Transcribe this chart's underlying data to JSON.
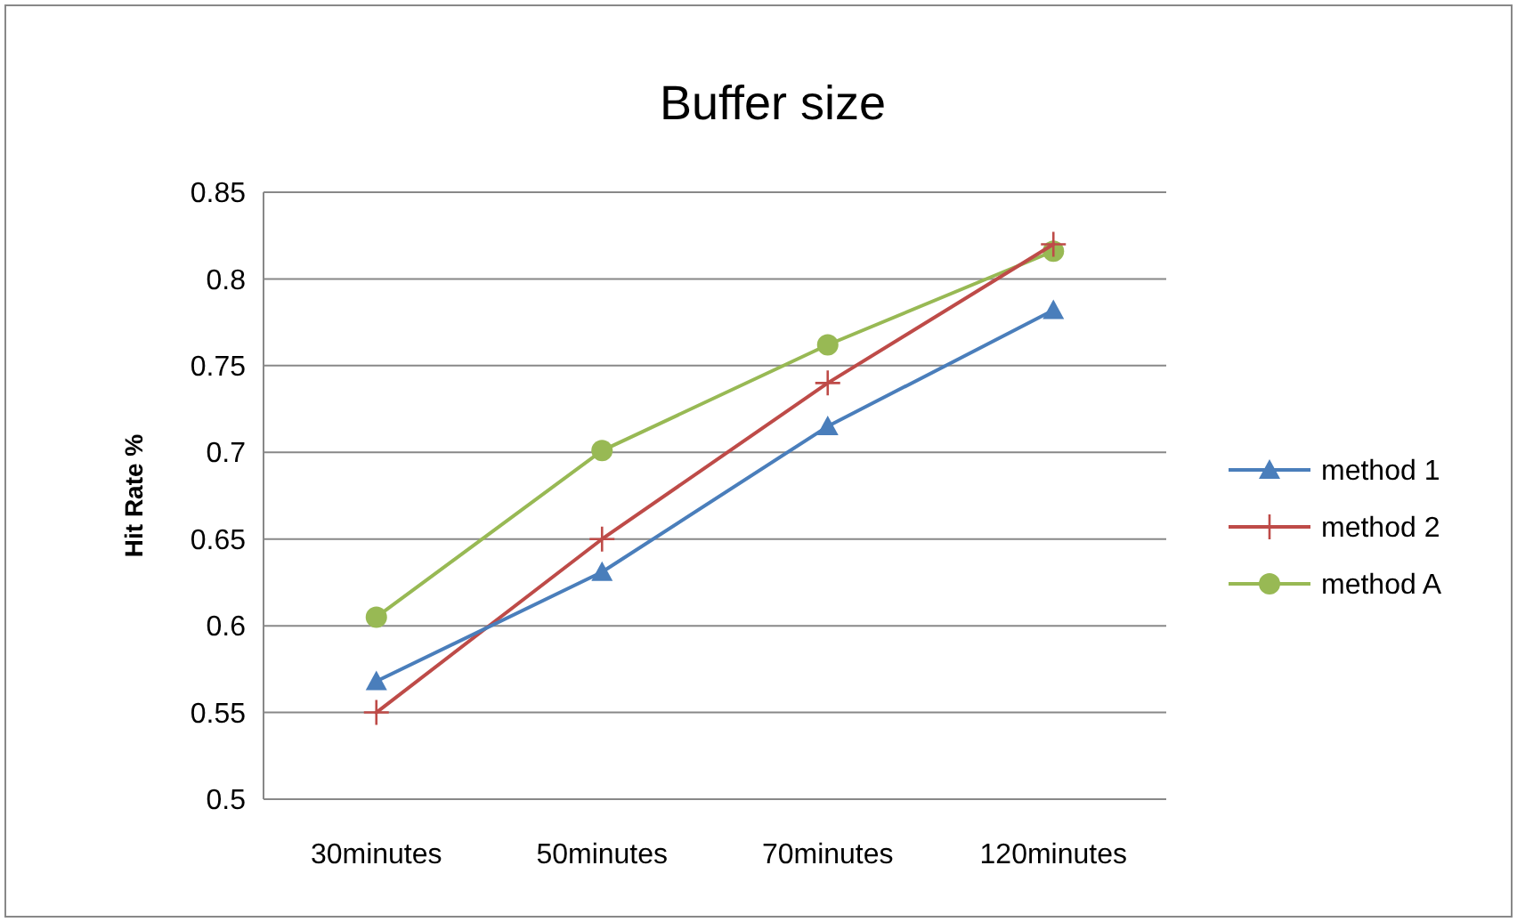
{
  "chart_data": {
    "type": "line",
    "title": "Buffer size",
    "ylabel": "Hit Rate %",
    "categories": [
      "30minutes",
      "50minutes",
      "70minutes",
      "120minutes"
    ],
    "series": [
      {
        "name": "method 1",
        "color": "#4a7ebb",
        "marker": "triangle",
        "values": [
          0.568,
          0.631,
          0.715,
          0.782
        ]
      },
      {
        "name": "method 2",
        "color": "#be4b48",
        "marker": "cross",
        "values": [
          0.55,
          0.65,
          0.74,
          0.82
        ]
      },
      {
        "name": "method A",
        "color": "#98b954",
        "marker": "circle",
        "values": [
          0.605,
          0.701,
          0.762,
          0.816
        ]
      }
    ],
    "ylim": [
      0.5,
      0.85
    ],
    "yticks": [
      {
        "value": 0.5,
        "label": "0.5"
      },
      {
        "value": 0.55,
        "label": "0.55"
      },
      {
        "value": 0.6,
        "label": "0.6"
      },
      {
        "value": 0.65,
        "label": "0.65"
      },
      {
        "value": 0.7,
        "label": "0.7"
      },
      {
        "value": 0.75,
        "label": "0.75"
      },
      {
        "value": 0.8,
        "label": "0.8"
      },
      {
        "value": 0.85,
        "label": "0.85"
      }
    ],
    "grid": "y",
    "legend": "right"
  }
}
